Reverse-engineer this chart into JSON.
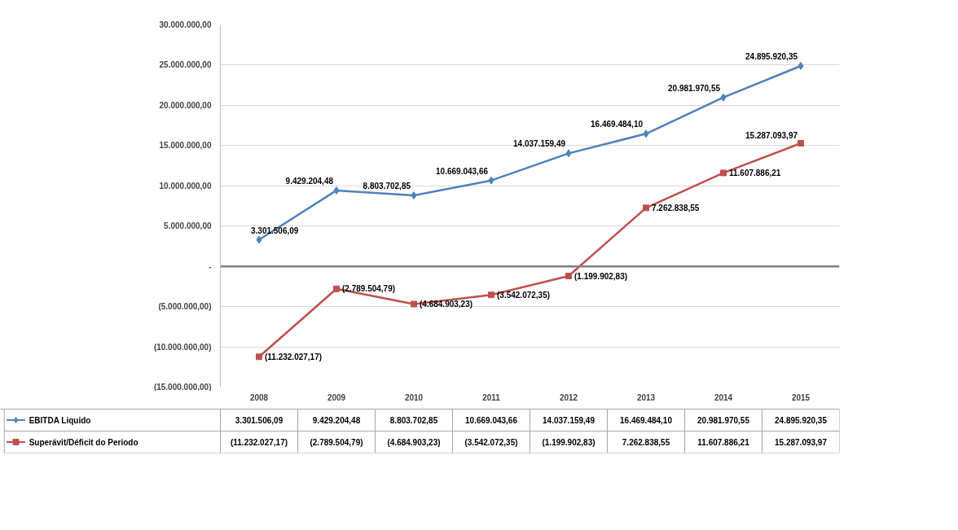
{
  "chart_data": {
    "type": "line",
    "categories": [
      "2008",
      "2009",
      "2010",
      "2011",
      "2012",
      "2013",
      "2014",
      "2015"
    ],
    "series": [
      {
        "name": "EBITDA Liquido",
        "color": "#4f81bd",
        "marker": "diamond",
        "values": [
          3301506.09,
          9429204.48,
          8803702.85,
          10669043.66,
          14037159.49,
          16469484.1,
          20981970.55,
          24895920.35
        ],
        "value_labels": [
          "3.301.506,09",
          "9.429.204,48",
          "8.803.702,85",
          "10.669.043,66",
          "14.037.159,49",
          "16.469.484,10",
          "20.981.970,55",
          "24.895.920,35"
        ]
      },
      {
        "name": "Superávit/Déficit do Periodo",
        "color": "#c0504d",
        "marker": "square",
        "values": [
          -11232027.17,
          -2789504.79,
          -4684903.23,
          -3542072.35,
          -1199902.83,
          7262838.55,
          11607886.21,
          15287093.97
        ],
        "value_labels": [
          "(11.232.027,17)",
          "(2.789.504,79)",
          "(4.684.903,23)",
          "(3.542.072,35)",
          "(1.199.902,83)",
          "7.262.838,55",
          "11.607.886,21",
          "15.287.093,97"
        ]
      }
    ],
    "ylim": [
      -15000000,
      30000000
    ],
    "yticks": [
      {
        "value": -15000000,
        "label": "(15.000.000,00)"
      },
      {
        "value": -10000000,
        "label": "(10.000.000,00)"
      },
      {
        "value": -5000000,
        "label": "(5.000.000,00)"
      },
      {
        "value": 0,
        "label": "-"
      },
      {
        "value": 5000000,
        "label": "5.000.000,00"
      },
      {
        "value": 10000000,
        "label": "10.000.000,00"
      },
      {
        "value": 15000000,
        "label": "15.000.000,00"
      },
      {
        "value": 20000000,
        "label": "20.000.000,00"
      },
      {
        "value": 25000000,
        "label": "25.000.000,00"
      },
      {
        "value": 30000000,
        "label": "30.000.000,00"
      }
    ],
    "ref_lines": [
      {
        "axis": "y",
        "value": 0,
        "label": null,
        "color": "#808080"
      }
    ],
    "grid": "y",
    "legend": "bottom",
    "line_style": "solid"
  }
}
